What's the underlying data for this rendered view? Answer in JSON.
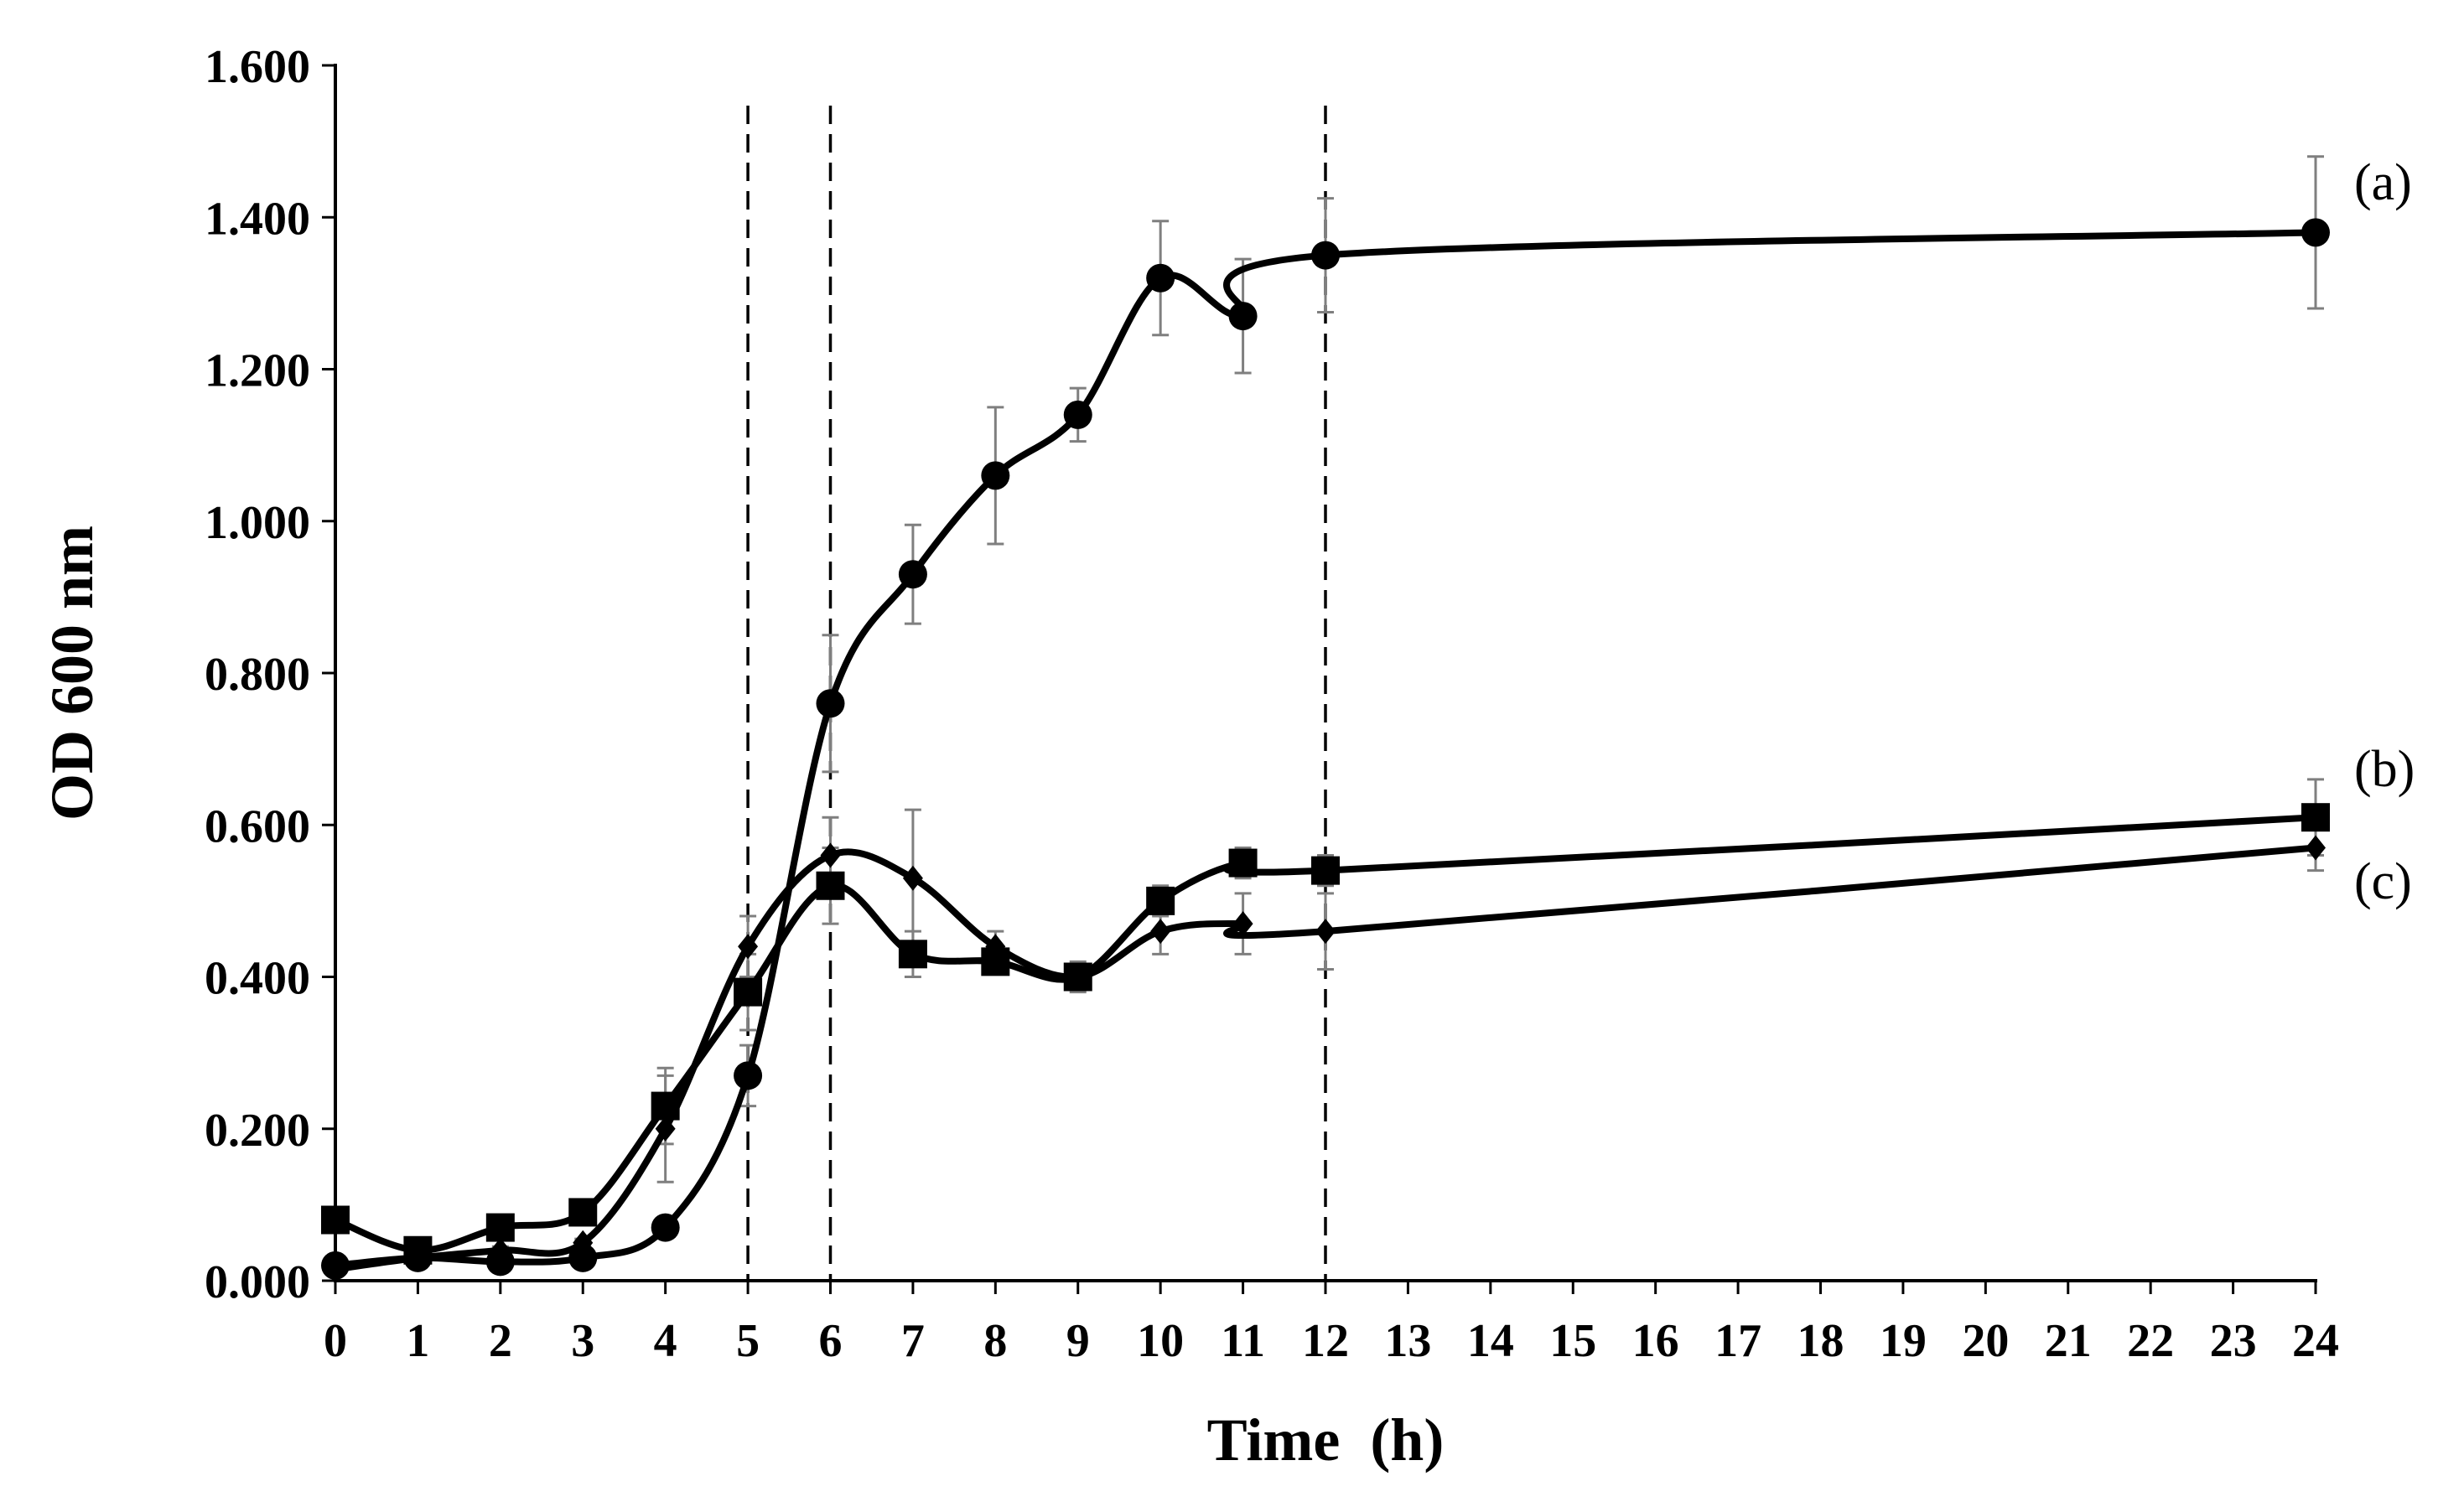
{
  "chart_data": {
    "type": "line",
    "title": "",
    "xlabel": "Time  (h)",
    "ylabel": "OD 600 nm",
    "xlim": [
      0,
      24
    ],
    "ylim": [
      0,
      1.6
    ],
    "grid": false,
    "x_ticks": [
      0,
      1,
      2,
      3,
      4,
      5,
      6,
      7,
      8,
      9,
      10,
      11,
      12,
      13,
      14,
      15,
      16,
      17,
      18,
      19,
      20,
      21,
      22,
      23,
      24
    ],
    "x_tick_labels": [
      "0",
      "1",
      "2",
      "3",
      "4",
      "5",
      "6",
      "7",
      "8",
      "9",
      "10",
      "11",
      "12",
      "13",
      "14",
      "15",
      "16",
      "17",
      "18",
      "19",
      "20",
      "21",
      "22",
      "23",
      "24"
    ],
    "y_ticks": [
      0,
      0.2,
      0.4,
      0.6,
      0.8,
      1.0,
      1.2,
      1.4,
      1.6
    ],
    "y_tick_labels": [
      "0.000",
      "0.200",
      "0.400",
      "0.600",
      "0.800",
      "1.000",
      "1.200",
      "1.400",
      "1.600"
    ],
    "vertical_reference_lines": [
      5,
      6,
      12
    ],
    "series": [
      {
        "name": "(a)",
        "marker": "circle",
        "x": [
          0,
          1,
          2,
          3,
          4,
          5,
          6,
          7,
          8,
          9,
          10,
          11,
          12,
          24
        ],
        "values": [
          0.02,
          0.03,
          0.025,
          0.03,
          0.07,
          0.27,
          0.76,
          0.93,
          1.06,
          1.14,
          1.32,
          1.27,
          1.35,
          1.38
        ],
        "errors": [
          0.005,
          0.005,
          0.005,
          0.005,
          0.01,
          0.04,
          0.09,
          0.065,
          0.09,
          0.035,
          0.075,
          0.075,
          0.075,
          0.1
        ]
      },
      {
        "name": "(b)",
        "marker": "square",
        "x": [
          0,
          1,
          2,
          3,
          4,
          5,
          6,
          7,
          8,
          9,
          10,
          11,
          12,
          24
        ],
        "values": [
          0.08,
          0.04,
          0.07,
          0.09,
          0.23,
          0.38,
          0.52,
          0.43,
          0.42,
          0.4,
          0.5,
          0.55,
          0.54,
          0.61
        ],
        "errors": [
          0.005,
          0.005,
          0.005,
          0.005,
          0.05,
          0.05,
          0.05,
          0.03,
          0.015,
          0.015,
          0.02,
          0.02,
          0.02,
          0.05
        ]
      },
      {
        "name": "(c)",
        "marker": "diamond",
        "x": [
          0,
          1,
          2,
          3,
          4,
          5,
          6,
          7,
          8,
          9,
          10,
          11,
          12,
          24
        ],
        "values": [
          0.015,
          0.03,
          0.04,
          0.05,
          0.2,
          0.44,
          0.56,
          0.53,
          0.44,
          0.4,
          0.46,
          0.47,
          0.46,
          0.57
        ],
        "errors": [
          0.005,
          0.005,
          0.005,
          0.005,
          0.07,
          0.04,
          0.05,
          0.09,
          0.02,
          0.02,
          0.03,
          0.04,
          0.05,
          0.03
        ]
      }
    ]
  },
  "colors": {
    "ink": "#000000",
    "error_bar": "#7f7f7f",
    "background": "#ffffff"
  }
}
